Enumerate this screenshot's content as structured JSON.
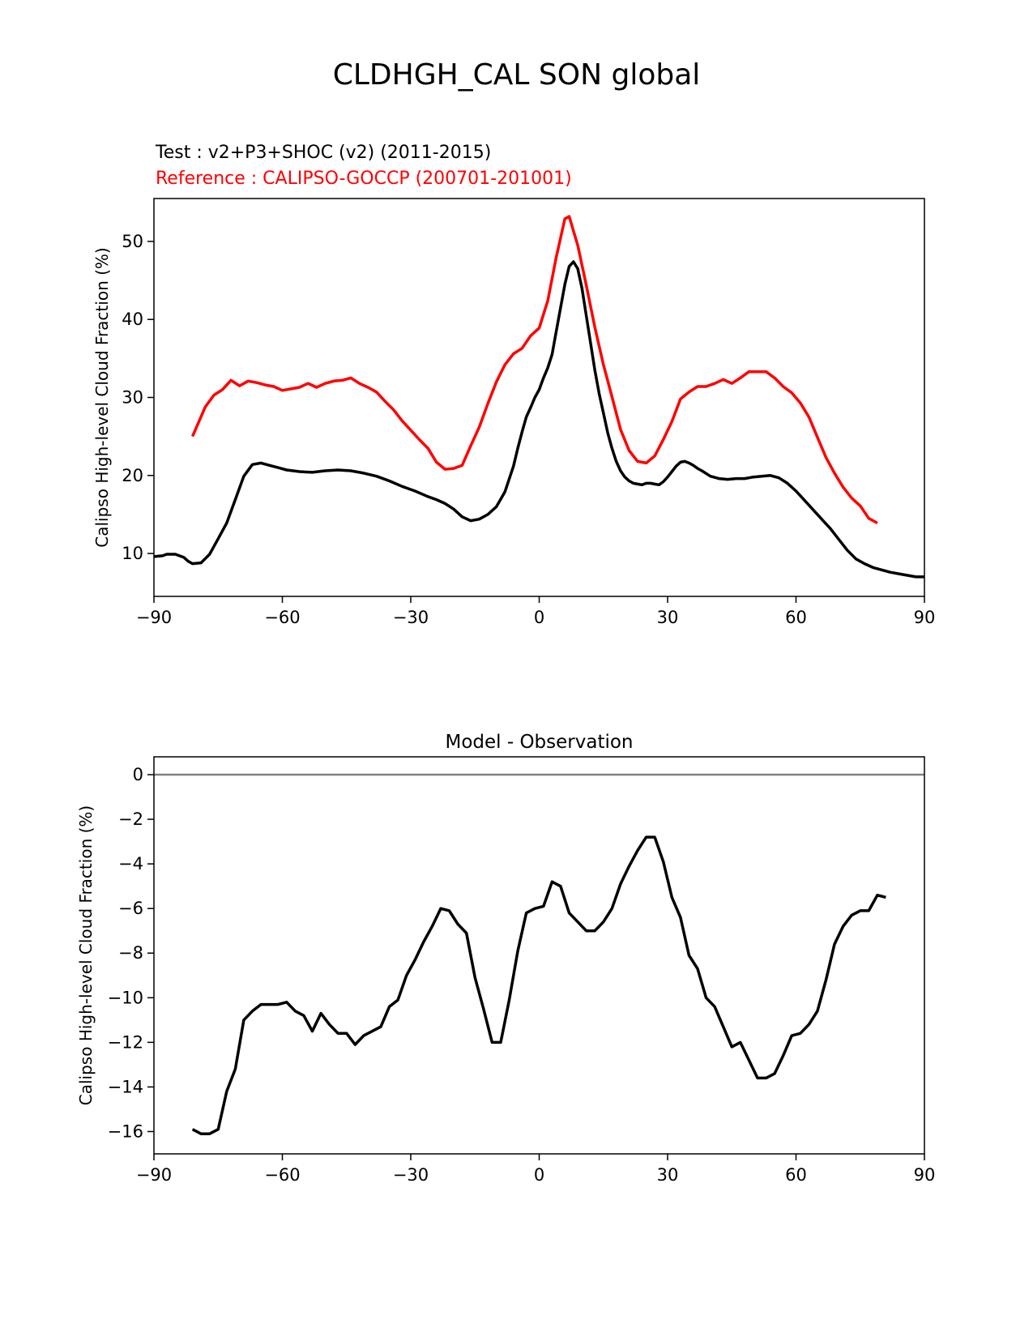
{
  "figure": {
    "title": "CLDHGH_CAL SON global",
    "test_label": "Test : v2+P3+SHOC (v2) (2011-2015)",
    "reference_label": "Reference : CALIPSO-GOCCP (200701-201001)",
    "colors": {
      "test": "#000000",
      "reference": "#ff0000",
      "zero_line": "#808080"
    }
  },
  "chart_data": [
    {
      "type": "line",
      "title": "",
      "xlabel": "",
      "ylabel": "Calipso High-level Cloud Fraction (%)",
      "xlim": [
        -90,
        90
      ],
      "ylim": [
        4.5,
        55.5
      ],
      "xticks": [
        -90,
        -60,
        -30,
        0,
        30,
        60,
        90
      ],
      "xtick_labels": [
        "−90",
        "−60",
        "−30",
        "0",
        "30",
        "60",
        "90"
      ],
      "yticks": [
        10,
        20,
        30,
        40,
        50
      ],
      "ytick_labels": [
        "10",
        "20",
        "30",
        "40",
        "50"
      ],
      "series": [
        {
          "name": "Test : v2+P3+SHOC (v2) (2011-2015)",
          "color": "#000000",
          "x": [
            -90,
            -88,
            -87,
            -86,
            -85,
            -83,
            -82,
            -81,
            -79,
            -77,
            -75,
            -73,
            -71,
            -69,
            -67,
            -65,
            -63,
            -61,
            -59,
            -56,
            -53,
            -50,
            -47,
            -44,
            -41,
            -38,
            -35,
            -32,
            -29,
            -26,
            -24,
            -22,
            -20,
            -18,
            -16,
            -14,
            -12,
            -10,
            -8,
            -6,
            -5,
            -4,
            -3,
            -2,
            -1,
            0,
            1,
            2,
            3,
            4,
            5,
            6,
            7,
            8,
            9,
            10,
            11,
            12,
            13,
            14,
            15,
            16,
            17,
            18,
            19,
            20,
            21,
            22,
            23,
            24,
            25,
            26,
            27,
            28,
            29,
            30,
            31,
            32,
            33,
            34,
            35,
            36,
            37,
            38,
            40,
            42,
            44,
            46,
            48,
            50,
            52,
            54,
            56,
            58,
            60,
            62,
            64,
            66,
            68,
            70,
            72,
            74,
            76,
            78,
            80,
            82,
            84,
            86,
            88,
            89,
            90
          ],
          "y": [
            9.6,
            9.7,
            9.9,
            9.9,
            9.9,
            9.5,
            9.0,
            8.7,
            8.8,
            9.9,
            11.9,
            13.9,
            16.9,
            19.9,
            21.4,
            21.6,
            21.3,
            21.0,
            20.7,
            20.5,
            20.4,
            20.6,
            20.7,
            20.6,
            20.3,
            19.9,
            19.3,
            18.6,
            18.0,
            17.3,
            16.9,
            16.4,
            15.7,
            14.7,
            14.2,
            14.4,
            15.0,
            16.0,
            17.9,
            21.2,
            23.5,
            25.6,
            27.5,
            28.7,
            30.0,
            31.0,
            32.5,
            33.8,
            35.5,
            38.5,
            41.5,
            44.5,
            46.8,
            47.4,
            46.5,
            44.0,
            40.5,
            37.0,
            33.5,
            30.5,
            28.0,
            25.5,
            23.5,
            21.8,
            20.6,
            19.8,
            19.3,
            19.0,
            18.9,
            18.8,
            19.0,
            19.0,
            18.9,
            18.8,
            19.2,
            19.8,
            20.5,
            21.2,
            21.7,
            21.8,
            21.6,
            21.3,
            20.9,
            20.6,
            19.9,
            19.6,
            19.5,
            19.6,
            19.6,
            19.8,
            19.9,
            20.0,
            19.7,
            19.0,
            18.0,
            16.8,
            15.6,
            14.4,
            13.2,
            11.8,
            10.4,
            9.3,
            8.7,
            8.2,
            7.9,
            7.6,
            7.4,
            7.2,
            7.0,
            7.0,
            7.0
          ]
        },
        {
          "name": "Reference : CALIPSO-GOCCP (200701-201001)",
          "color": "#ff0000",
          "x": [
            -81,
            -78,
            -76,
            -74,
            -72,
            -70,
            -68,
            -66,
            -64,
            -62,
            -60,
            -58,
            -56,
            -54,
            -52,
            -50,
            -48,
            -46,
            -44,
            -42,
            -40,
            -38,
            -36,
            -34,
            -32,
            -30,
            -28,
            -26,
            -24,
            -22,
            -20,
            -18,
            -16,
            -14,
            -12,
            -10,
            -8,
            -6,
            -4,
            -2,
            0,
            2,
            4,
            6,
            7,
            9,
            11,
            13,
            15,
            17,
            19,
            21,
            23,
            25,
            27,
            29,
            31,
            33,
            35,
            37,
            39,
            41,
            43,
            45,
            47,
            49,
            51,
            53,
            55,
            57,
            59,
            61,
            63,
            65,
            67,
            69,
            71,
            73,
            75,
            77,
            79,
            81
          ],
          "y": [
            25.0,
            28.8,
            30.3,
            31.0,
            32.2,
            31.5,
            32.1,
            31.9,
            31.6,
            31.4,
            30.9,
            31.1,
            31.3,
            31.8,
            31.3,
            31.8,
            32.1,
            32.2,
            32.5,
            31.8,
            31.3,
            30.7,
            29.5,
            28.4,
            27.0,
            25.8,
            24.6,
            23.5,
            21.7,
            20.8,
            20.9,
            21.3,
            23.8,
            26.2,
            29.2,
            32.0,
            34.2,
            35.6,
            36.3,
            37.9,
            38.9,
            42.4,
            48.0,
            52.9,
            53.2,
            49.5,
            44.4,
            39.0,
            34.2,
            30.1,
            25.9,
            23.2,
            21.8,
            21.6,
            22.5,
            24.6,
            26.9,
            29.8,
            30.7,
            31.4,
            31.4,
            31.8,
            32.3,
            31.8,
            32.5,
            33.3,
            33.3,
            33.3,
            32.5,
            31.4,
            30.6,
            29.3,
            27.5,
            24.9,
            22.3,
            20.3,
            18.5,
            17.1,
            16.1,
            14.5,
            13.9,
            null
          ]
        }
      ]
    },
    {
      "type": "line",
      "title": "Model - Observation",
      "xlabel": "",
      "ylabel": "Calipso High-level Cloud Fraction (%)",
      "xlim": [
        -90,
        90
      ],
      "ylim": [
        -17.0,
        0.8
      ],
      "xticks": [
        -90,
        -60,
        -30,
        0,
        30,
        60,
        90
      ],
      "xtick_labels": [
        "−90",
        "−60",
        "−30",
        "0",
        "30",
        "60",
        "90"
      ],
      "yticks": [
        0,
        -2,
        -4,
        -6,
        -8,
        -10,
        -12,
        -14,
        -16
      ],
      "ytick_labels": [
        "0",
        "−2",
        "−4",
        "−6",
        "−8",
        "−10",
        "−12",
        "−14",
        "−16"
      ],
      "zero_line": 0,
      "series": [
        {
          "name": "Model - Observation",
          "color": "#000000",
          "x": [
            -81,
            -79,
            -77,
            -75,
            -73,
            -71,
            -69,
            -67,
            -65,
            -63,
            -61,
            -59,
            -57,
            -55,
            -53,
            -51,
            -49,
            -47,
            -45,
            -43,
            -41,
            -39,
            -37,
            -35,
            -33,
            -31,
            -29,
            -27,
            -25,
            -23,
            -21,
            -19,
            -17,
            -15,
            -13,
            -11,
            -9,
            -7,
            -5,
            -3,
            -1,
            1,
            3,
            5,
            7,
            9,
            11,
            13,
            15,
            17,
            19,
            21,
            23,
            25,
            27,
            29,
            31,
            33,
            35,
            37,
            39,
            41,
            43,
            45,
            47,
            49,
            51,
            53,
            55,
            57,
            59,
            61,
            63,
            65,
            67,
            69,
            71,
            73,
            75,
            77,
            79,
            81
          ],
          "y": [
            -15.9,
            -16.1,
            -16.1,
            -15.9,
            -14.2,
            -13.2,
            -11.0,
            -10.6,
            -10.3,
            -10.3,
            -10.3,
            -10.2,
            -10.6,
            -10.8,
            -11.5,
            -10.7,
            -11.2,
            -11.6,
            -11.6,
            -12.1,
            -11.7,
            -11.5,
            -11.3,
            -10.4,
            -10.1,
            -9.0,
            -8.3,
            -7.5,
            -6.8,
            -6.0,
            -6.1,
            -6.7,
            -7.1,
            -9.1,
            -10.5,
            -12.0,
            -12.0,
            -10.1,
            -7.9,
            -6.2,
            -6.0,
            -5.9,
            -4.8,
            -5.0,
            -6.2,
            -6.6,
            -7.0,
            -7.0,
            -6.6,
            -6.0,
            -4.9,
            -4.1,
            -3.4,
            -2.8,
            -2.8,
            -3.9,
            -5.5,
            -6.4,
            -8.1,
            -8.7,
            -10.0,
            -10.4,
            -11.3,
            -12.2,
            -12.0,
            -12.8,
            -13.6,
            -13.6,
            -13.4,
            -12.6,
            -11.7,
            -11.6,
            -11.2,
            -10.6,
            -9.2,
            -7.6,
            -6.8,
            -6.3,
            -6.1,
            -6.1,
            -5.4,
            -5.5
          ]
        }
      ]
    }
  ]
}
